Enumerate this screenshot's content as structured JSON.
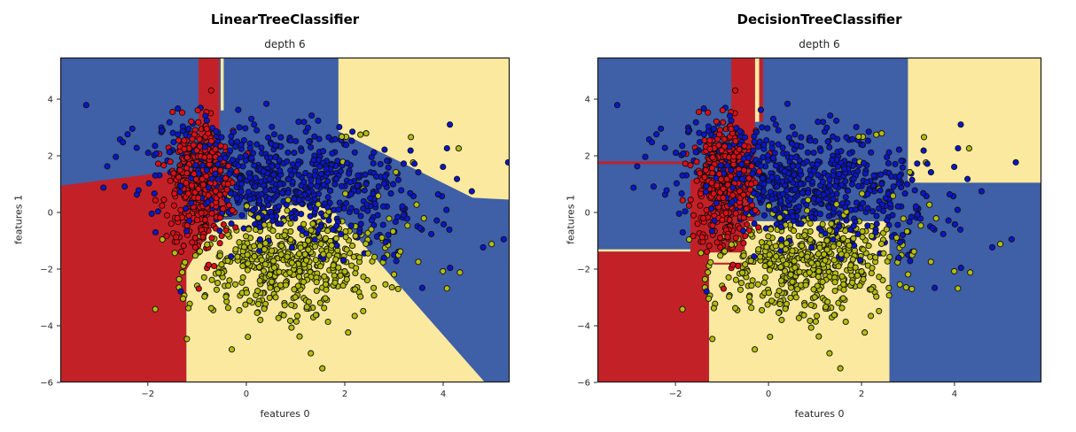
{
  "page": {
    "background": "#ffffff"
  },
  "colors": {
    "region_red": "#c32128",
    "region_blue": "#3f5fa7",
    "region_cream": "#fbe9a0",
    "dot_blue": "#0a16c9",
    "dot_red": "#e00d16",
    "dot_olive": "#b4bd0c",
    "dot_edge": "#101010",
    "axis": "#262626",
    "border": "#1a1a1a"
  },
  "chart_data": [
    {
      "type": "scatter",
      "title": "LinearTreeClassifier",
      "subtitle": "depth 6",
      "xlabel": "features 0",
      "ylabel": "features 1",
      "xlim": [
        -3.78,
        5.35
      ],
      "ylim": [
        -6,
        5.47
      ],
      "x_ticks": [
        -2,
        0,
        2,
        4
      ],
      "y_ticks": [
        4,
        2,
        0,
        -2,
        -4,
        -6
      ],
      "boundary_style": "oblique",
      "legend": null,
      "grid": false,
      "regions": [
        {
          "color": "blue",
          "points": [
            [
              -4.2,
              -6.5
            ],
            [
              6.2,
              -6.5
            ],
            [
              6.2,
              5.8
            ],
            [
              -4.2,
              5.8
            ]
          ]
        },
        {
          "color": "cream",
          "points": [
            [
              -1.22,
              -6.3
            ],
            [
              -1.22,
              -2.03
            ],
            [
              -0.65,
              -0.38
            ],
            [
              -0.45,
              -0.25
            ],
            [
              0.02,
              -0.25
            ],
            [
              0.02,
              0.2
            ],
            [
              1.65,
              0.3
            ],
            [
              5.0,
              -6.3
            ]
          ]
        },
        {
          "color": "cream",
          "points": [
            [
              1.87,
              5.8
            ],
            [
              6.2,
              5.8
            ],
            [
              6.2,
              0.38
            ],
            [
              4.6,
              0.52
            ],
            [
              1.87,
              2.87
            ]
          ]
        },
        {
          "color": "cream",
          "points": [
            [
              -0.52,
              5.8
            ],
            [
              -0.46,
              5.8
            ],
            [
              -0.46,
              3.6
            ],
            [
              -0.52,
              3.6
            ]
          ]
        },
        {
          "color": "red",
          "points": [
            [
              -0.97,
              5.8
            ],
            [
              -0.55,
              5.8
            ],
            [
              -0.55,
              1.2
            ],
            [
              -0.97,
              1.2
            ]
          ]
        },
        {
          "color": "red",
          "points": [
            [
              -4.2,
              0.85
            ],
            [
              -1.0,
              1.56
            ],
            [
              -0.55,
              1.56
            ],
            [
              -0.45,
              1.0
            ],
            [
              -0.33,
              0.45
            ],
            [
              -0.38,
              0.05
            ],
            [
              -0.5,
              -0.28
            ],
            [
              -0.65,
              -0.38
            ],
            [
              -1.22,
              -2.03
            ],
            [
              -1.22,
              -6.3
            ],
            [
              -4.2,
              -6.3
            ]
          ]
        }
      ],
      "clusters": [
        {
          "label": "class-blue",
          "color": "blue",
          "n": 720,
          "cx": 0.75,
          "cy": 0.95,
          "sx": 1.4,
          "sy": 1.05,
          "corr": -0.3
        },
        {
          "label": "class-red",
          "color": "red",
          "n": 380,
          "cx": -0.95,
          "cy": 0.95,
          "sx": 0.34,
          "sy": 1.1,
          "corr": 0.05
        },
        {
          "label": "class-olive",
          "color": "olive",
          "n": 520,
          "cx": 0.95,
          "cy": -1.8,
          "sx": 1.05,
          "sy": 0.95,
          "corr": 0.1
        },
        {
          "label": "class-olive-outliers",
          "color": "olive",
          "n": 9,
          "cx": 2.9,
          "cy": 2.0,
          "sx": 0.75,
          "sy": 0.55,
          "corr": 0
        }
      ],
      "seed": 1337
    },
    {
      "type": "scatter",
      "title": "DecisionTreeClassifier",
      "subtitle": "depth 6",
      "xlabel": "features 0",
      "ylabel": "features 1",
      "xlim": [
        -3.68,
        5.87
      ],
      "ylim": [
        -6,
        5.47
      ],
      "x_ticks": [
        -2,
        0,
        2,
        4
      ],
      "y_ticks": [
        4,
        2,
        0,
        -2,
        -4,
        -6
      ],
      "boundary_style": "axis-aligned",
      "legend": null,
      "grid": false,
      "regions": [
        {
          "color": "blue",
          "points": [
            [
              -4.2,
              -6.5
            ],
            [
              6.4,
              -6.5
            ],
            [
              6.4,
              5.8
            ],
            [
              -4.2,
              5.8
            ]
          ]
        },
        {
          "color": "cream",
          "points": [
            [
              -1.28,
              -6.3
            ],
            [
              -1.28,
              -1.41
            ],
            [
              -0.51,
              -1.41
            ],
            [
              -0.51,
              -0.31
            ],
            [
              2.6,
              -0.31
            ],
            [
              2.6,
              -6.3
            ]
          ]
        },
        {
          "color": "cream",
          "points": [
            [
              3.0,
              1.05
            ],
            [
              6.4,
              1.05
            ],
            [
              6.4,
              5.8
            ],
            [
              3.0,
              5.8
            ]
          ]
        },
        {
          "color": "cream",
          "points": [
            [
              -4.2,
              -1.38
            ],
            [
              -1.68,
              -1.38
            ],
            [
              -1.68,
              -1.3
            ],
            [
              -4.2,
              -1.3
            ]
          ]
        },
        {
          "color": "cream",
          "points": [
            [
              -0.29,
              3.2
            ],
            [
              -0.2,
              3.2
            ],
            [
              -0.2,
              5.8
            ],
            [
              -0.29,
              5.8
            ]
          ]
        },
        {
          "color": "red",
          "points": [
            [
              -4.2,
              -6.3
            ],
            [
              -1.28,
              -6.3
            ],
            [
              -1.28,
              -1.38
            ],
            [
              -4.2,
              -1.38
            ]
          ]
        },
        {
          "color": "red",
          "points": [
            [
              -1.68,
              1.16
            ],
            [
              -0.32,
              1.16
            ],
            [
              -0.32,
              -0.31
            ],
            [
              -0.51,
              -0.31
            ],
            [
              -0.51,
              -1.41
            ],
            [
              -1.68,
              -1.41
            ]
          ]
        },
        {
          "color": "red",
          "points": [
            [
              -0.8,
              5.8
            ],
            [
              -0.29,
              5.8
            ],
            [
              -0.29,
              1.16
            ],
            [
              -0.8,
              1.16
            ]
          ]
        },
        {
          "color": "red",
          "points": [
            [
              -0.2,
              5.8
            ],
            [
              -0.115,
              5.8
            ],
            [
              -0.115,
              3.2
            ],
            [
              -0.2,
              3.2
            ]
          ]
        },
        {
          "color": "red",
          "points": [
            [
              -4.2,
              1.8
            ],
            [
              -1.68,
              1.8
            ],
            [
              -1.68,
              1.71
            ],
            [
              -4.2,
              1.71
            ]
          ]
        },
        {
          "color": "red",
          "points": [
            [
              -1.18,
              -1.77
            ],
            [
              -0.27,
              -1.77
            ],
            [
              -0.27,
              -1.84
            ],
            [
              -1.18,
              -1.84
            ]
          ]
        }
      ],
      "clusters": [
        {
          "label": "class-blue",
          "color": "blue",
          "n": 720,
          "cx": 0.75,
          "cy": 0.95,
          "sx": 1.4,
          "sy": 1.05,
          "corr": -0.3
        },
        {
          "label": "class-red",
          "color": "red",
          "n": 380,
          "cx": -0.95,
          "cy": 0.95,
          "sx": 0.34,
          "sy": 1.1,
          "corr": 0.05
        },
        {
          "label": "class-olive",
          "color": "olive",
          "n": 520,
          "cx": 0.95,
          "cy": -1.8,
          "sx": 1.05,
          "sy": 0.95,
          "corr": 0.1
        },
        {
          "label": "class-olive-outliers",
          "color": "olive",
          "n": 9,
          "cx": 2.9,
          "cy": 2.0,
          "sx": 0.75,
          "sy": 0.55,
          "corr": 0
        }
      ],
      "seed": 1337
    }
  ]
}
